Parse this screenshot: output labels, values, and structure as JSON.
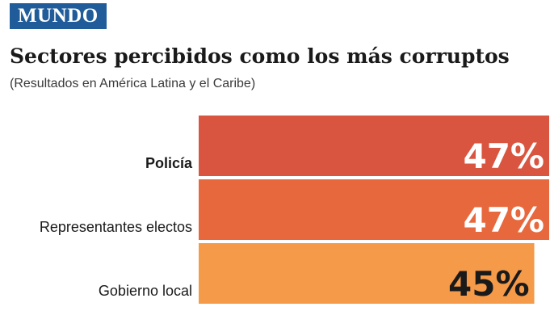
{
  "section": {
    "label": "MUNDO",
    "color": "#1f5c99"
  },
  "chart_data": {
    "type": "bar",
    "orientation": "horizontal",
    "title": "Sectores percibidos como los más corruptos",
    "subtitle": "(Resultados en América Latina y el Caribe)",
    "categories": [
      "Policía",
      "Representantes electos",
      "Gobierno local"
    ],
    "values": [
      47,
      47,
      45
    ],
    "value_labels": [
      "47%",
      "47%",
      "45%"
    ],
    "unit": "%",
    "xlim": [
      0,
      47
    ],
    "grid": false,
    "legend": "none",
    "colors": [
      "#d95540",
      "#e8683d",
      "#f49a48"
    ],
    "value_label_colors": [
      "#ffffff",
      "#ffffff",
      "#1a1a1a"
    ],
    "bold_categories": [
      "Policía"
    ]
  }
}
